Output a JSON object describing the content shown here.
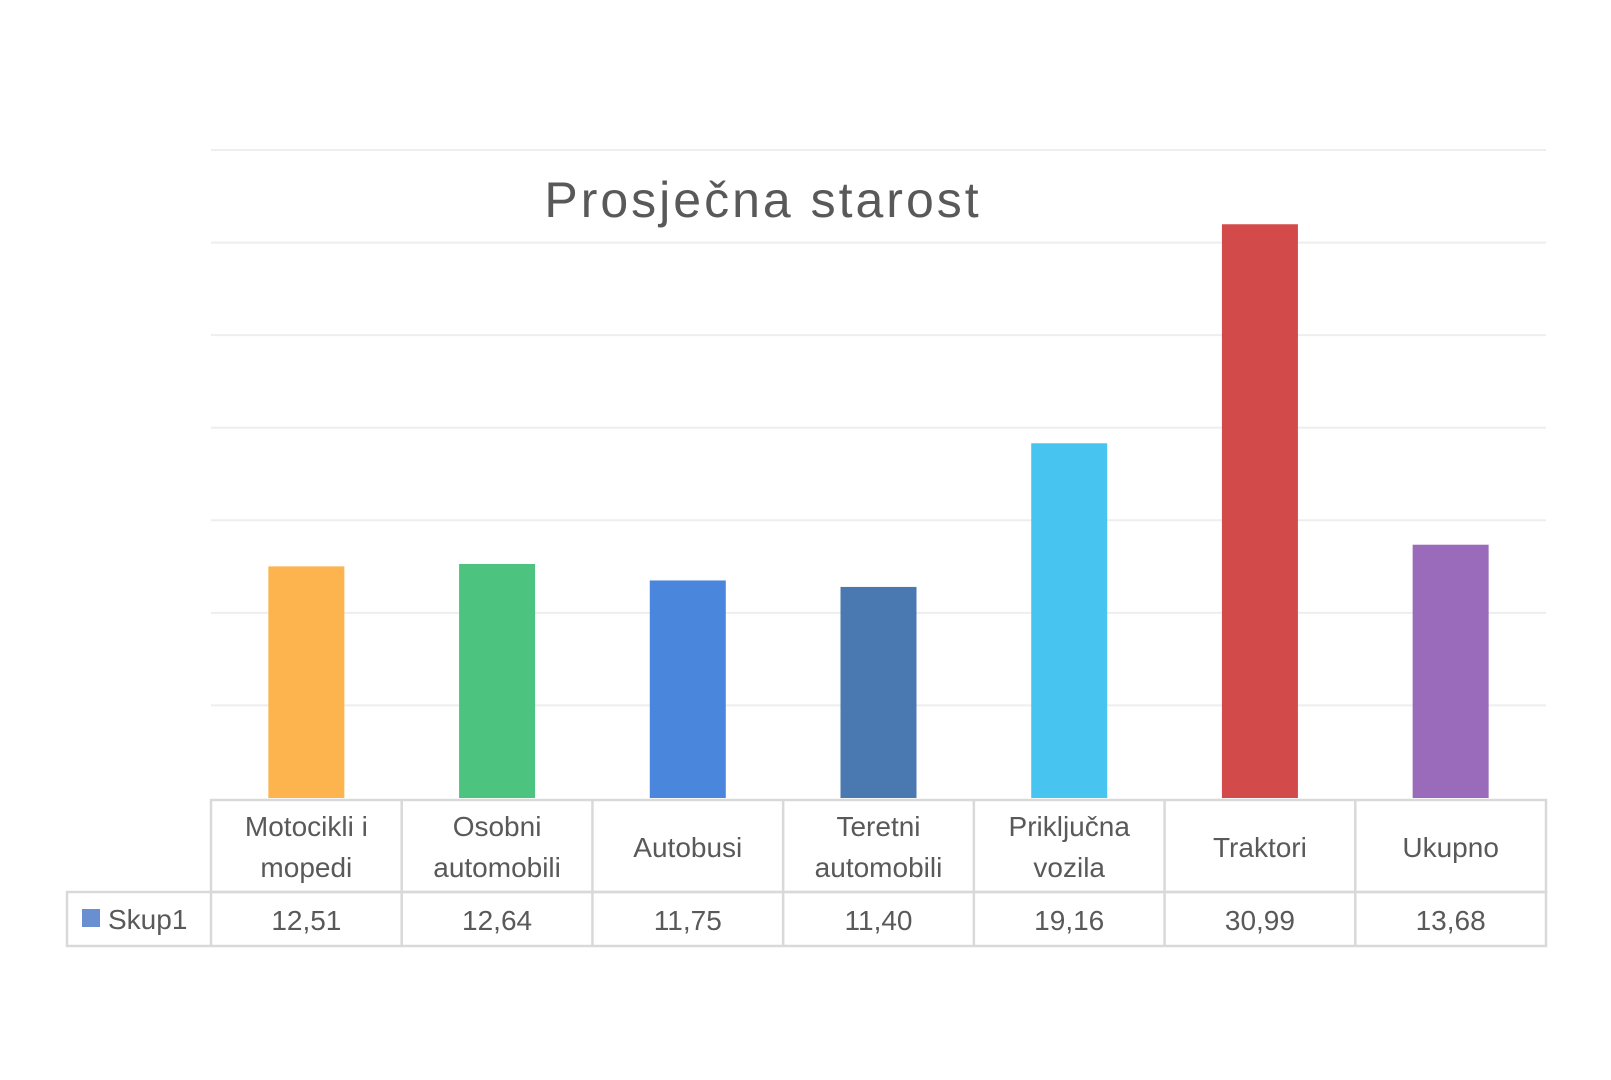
{
  "chart_data": {
    "type": "bar",
    "title": "Prosječna starost",
    "categories": [
      [
        "Motocikli i",
        "mopedi"
      ],
      [
        "Osobni",
        "automobili"
      ],
      [
        "Autobusi"
      ],
      [
        "Teretni",
        "automobili"
      ],
      [
        "Priključna",
        "vozila"
      ],
      [
        "Traktori"
      ],
      [
        "Ukupno"
      ]
    ],
    "series": [
      {
        "name": "Skup1",
        "values": [
          12.51,
          12.64,
          11.75,
          11.4,
          19.16,
          30.99,
          13.68
        ],
        "labels": [
          "12,51",
          "12,64",
          "11,75",
          "11,40",
          "19,16",
          "30,99",
          "13,68"
        ],
        "colors": [
          "#fdb44e",
          "#4cc47f",
          "#4a86db",
          "#4a78b0",
          "#47c5f0",
          "#d34a4a",
          "#9a6bba"
        ],
        "legend_color": "#6a8fd0"
      }
    ],
    "xlabel": "",
    "ylabel": "",
    "ylim": [
      0,
      35
    ],
    "grid_step": 5,
    "grid": true,
    "legend": "data-table"
  }
}
